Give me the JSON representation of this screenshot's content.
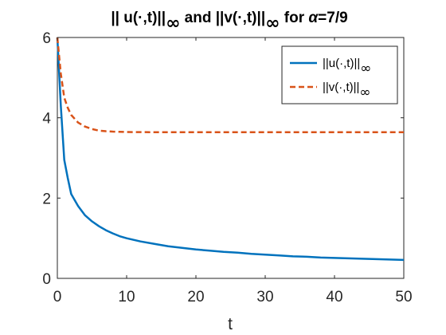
{
  "chart_data": {
    "type": "line",
    "title_parts": [
      "|| u(·,t)||",
      "∞",
      " and ||v(·,t)||",
      "∞",
      " for ",
      "α",
      "=7/9"
    ],
    "xlabel": "t",
    "ylabel": "",
    "xlim": [
      0,
      50
    ],
    "ylim": [
      0,
      6
    ],
    "xticks": [
      0,
      10,
      20,
      30,
      40,
      50
    ],
    "yticks": [
      0,
      2,
      4,
      6
    ],
    "grid": false,
    "legend_position": "top-right",
    "series": [
      {
        "name_main": "||u(·,t)||",
        "name_sub": "∞",
        "style": "solid",
        "color": "#0072BD",
        "x": [
          0,
          0.5,
          1,
          1.5,
          2,
          3,
          4,
          5,
          6,
          7,
          8,
          9,
          10,
          12,
          14,
          16,
          18,
          20,
          22,
          24,
          26,
          28,
          30,
          32,
          34,
          36,
          38,
          40,
          42,
          44,
          46,
          48,
          50
        ],
        "y": [
          6.0,
          4.3,
          2.95,
          2.5,
          2.1,
          1.8,
          1.57,
          1.42,
          1.3,
          1.2,
          1.12,
          1.05,
          1.0,
          0.92,
          0.86,
          0.8,
          0.76,
          0.72,
          0.69,
          0.66,
          0.64,
          0.61,
          0.59,
          0.57,
          0.55,
          0.54,
          0.52,
          0.51,
          0.5,
          0.49,
          0.48,
          0.47,
          0.46
        ]
      },
      {
        "name_main": "||v(·,t)||",
        "name_sub": "∞",
        "style": "dashed",
        "color": "#D95319",
        "x": [
          0,
          0.5,
          1,
          1.5,
          2,
          3,
          4,
          5,
          6,
          7,
          8,
          9,
          10,
          15,
          20,
          30,
          40,
          50
        ],
        "y": [
          6.0,
          5.1,
          4.5,
          4.25,
          4.07,
          3.88,
          3.78,
          3.72,
          3.68,
          3.665,
          3.655,
          3.65,
          3.645,
          3.64,
          3.64,
          3.64,
          3.64,
          3.64
        ]
      }
    ]
  }
}
